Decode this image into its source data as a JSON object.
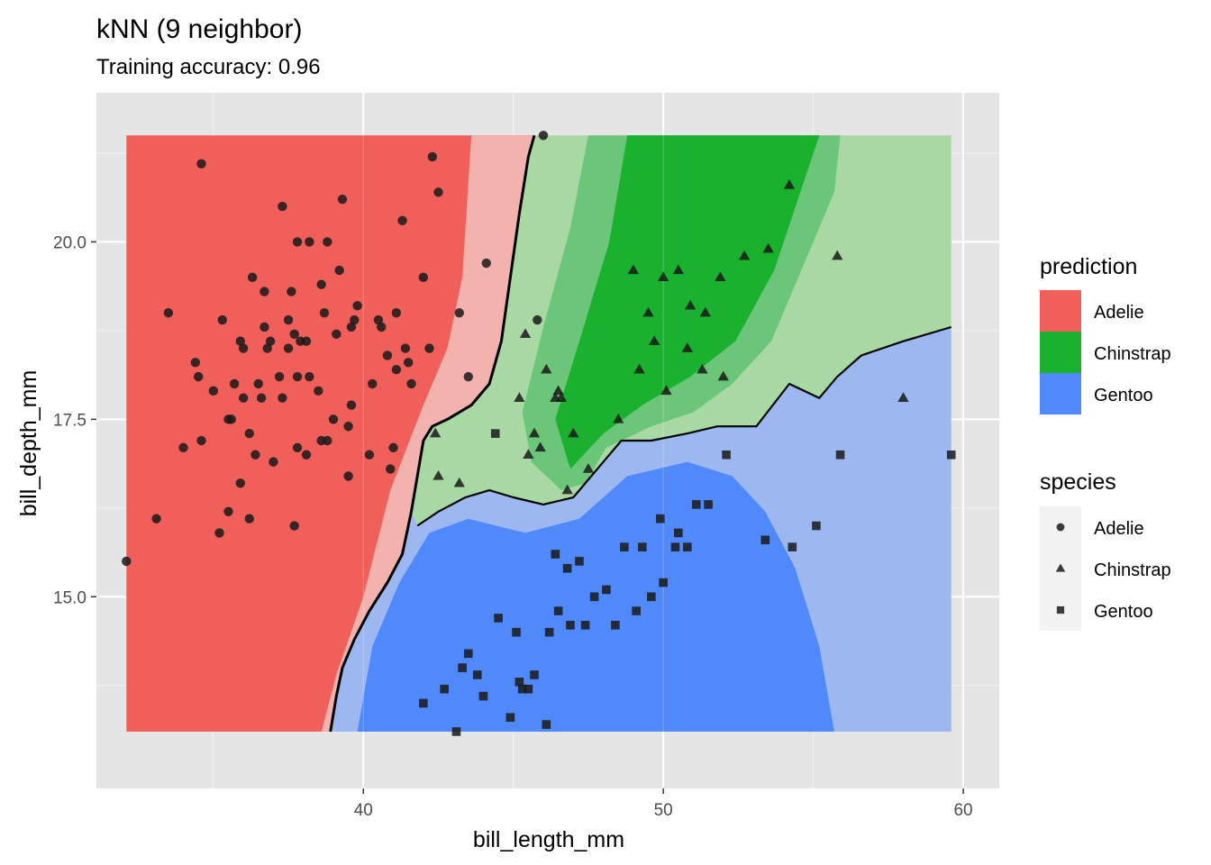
{
  "chart_data": {
    "type": "scatter",
    "title": "kNN (9 neighbor)",
    "subtitle": "Training accuracy: 0.96",
    "xlabel": "bill_length_mm",
    "ylabel": "bill_depth_mm",
    "xlim": [
      31.1,
      61.2
    ],
    "ylim": [
      12.3,
      22.1
    ],
    "x_ticks": [
      40,
      50,
      60
    ],
    "x_tick_labels": [
      "40",
      "50",
      "60"
    ],
    "y_ticks": [
      15.0,
      17.5,
      20.0
    ],
    "y_tick_labels": [
      "15.0",
      "17.5",
      "20.0"
    ],
    "grid": true,
    "background": "#e5e5e5",
    "region": {
      "x": [
        32.1,
        59.6
      ],
      "y": [
        13.1,
        21.5
      ]
    },
    "legend_position": "right",
    "legend_prediction": {
      "title": "prediction",
      "items": [
        {
          "label": "Adelie",
          "color": "#f15f5a"
        },
        {
          "label": "Chinstrap",
          "color": "#19b12e"
        },
        {
          "label": "Gentoo",
          "color": "#4f89fb"
        }
      ]
    },
    "legend_species": {
      "title": "species",
      "items": [
        {
          "label": "Adelie",
          "shape": "circle"
        },
        {
          "label": "Chinstrap",
          "shape": "triangle"
        },
        {
          "label": "Gentoo",
          "shape": "square"
        }
      ]
    },
    "regions": {
      "adelie_chinstrap_boundary": [
        [
          38.9,
          13.1
        ],
        [
          39.1,
          13.6
        ],
        [
          39.3,
          14.0
        ],
        [
          39.7,
          14.4
        ],
        [
          40.2,
          14.8
        ],
        [
          40.8,
          15.2
        ],
        [
          41.3,
          15.6
        ],
        [
          41.6,
          16.2
        ],
        [
          41.8,
          16.7
        ],
        [
          42.0,
          17.2
        ],
        [
          42.3,
          17.4
        ],
        [
          42.8,
          17.5
        ],
        [
          43.6,
          17.7
        ],
        [
          44.2,
          18.0
        ],
        [
          44.6,
          18.6
        ],
        [
          44.9,
          19.5
        ],
        [
          45.2,
          20.4
        ],
        [
          45.5,
          21.2
        ],
        [
          45.7,
          21.5
        ]
      ],
      "chinstrap_gentoo_boundary": [
        [
          41.8,
          16.0
        ],
        [
          42.5,
          16.2
        ],
        [
          43.4,
          16.4
        ],
        [
          44.2,
          16.5
        ],
        [
          45.0,
          16.4
        ],
        [
          46.0,
          16.3
        ],
        [
          47.0,
          16.4
        ],
        [
          47.8,
          16.8
        ],
        [
          48.6,
          17.2
        ],
        [
          49.6,
          17.2
        ],
        [
          50.8,
          17.3
        ],
        [
          51.8,
          17.4
        ],
        [
          53.1,
          17.4
        ],
        [
          54.2,
          18.0
        ],
        [
          55.2,
          17.8
        ],
        [
          55.8,
          18.1
        ],
        [
          56.6,
          18.4
        ],
        [
          58.0,
          18.6
        ],
        [
          59.6,
          18.8
        ]
      ],
      "adelie_color_soft": "#f3b2ae",
      "chinstrap_color_soft": "#a8d9a5",
      "gentoo_color_soft": "#9db8f0",
      "neutral_gray": "#dcdde6"
    },
    "series": [
      {
        "name": "Adelie",
        "shape": "circle",
        "points": [
          [
            32.1,
            15.5
          ],
          [
            33.1,
            16.1
          ],
          [
            33.5,
            19.0
          ],
          [
            34.0,
            17.1
          ],
          [
            34.4,
            18.3
          ],
          [
            34.5,
            18.1
          ],
          [
            34.6,
            21.1
          ],
          [
            34.6,
            17.2
          ],
          [
            35.0,
            17.9
          ],
          [
            35.2,
            15.9
          ],
          [
            35.3,
            18.9
          ],
          [
            35.5,
            16.2
          ],
          [
            35.5,
            17.5
          ],
          [
            35.6,
            17.5
          ],
          [
            35.7,
            18.0
          ],
          [
            35.9,
            16.6
          ],
          [
            35.9,
            18.6
          ],
          [
            36.0,
            18.5
          ],
          [
            36.0,
            17.8
          ],
          [
            36.2,
            16.1
          ],
          [
            36.2,
            17.3
          ],
          [
            36.3,
            19.5
          ],
          [
            36.4,
            17.0
          ],
          [
            36.5,
            18.0
          ],
          [
            36.6,
            17.8
          ],
          [
            36.7,
            18.8
          ],
          [
            36.7,
            19.3
          ],
          [
            36.8,
            18.5
          ],
          [
            36.9,
            18.6
          ],
          [
            37.0,
            16.9
          ],
          [
            37.2,
            18.1
          ],
          [
            37.3,
            17.8
          ],
          [
            37.3,
            20.5
          ],
          [
            37.5,
            18.9
          ],
          [
            37.5,
            18.5
          ],
          [
            37.6,
            19.3
          ],
          [
            37.7,
            18.7
          ],
          [
            37.7,
            16.0
          ],
          [
            37.8,
            17.1
          ],
          [
            37.8,
            18.1
          ],
          [
            37.8,
            20.0
          ],
          [
            37.9,
            18.6
          ],
          [
            38.1,
            18.6
          ],
          [
            38.1,
            17.0
          ],
          [
            38.2,
            18.1
          ],
          [
            38.2,
            20.0
          ],
          [
            38.5,
            17.9
          ],
          [
            38.6,
            19.4
          ],
          [
            38.6,
            17.2
          ],
          [
            38.7,
            19.0
          ],
          [
            38.8,
            17.2
          ],
          [
            38.8,
            20.0
          ],
          [
            39.0,
            17.5
          ],
          [
            39.1,
            18.7
          ],
          [
            39.2,
            19.6
          ],
          [
            39.3,
            20.6
          ],
          [
            39.5,
            17.4
          ],
          [
            39.5,
            16.7
          ],
          [
            39.6,
            17.7
          ],
          [
            39.6,
            18.8
          ],
          [
            39.7,
            18.9
          ],
          [
            39.8,
            19.1
          ],
          [
            40.2,
            17.0
          ],
          [
            40.3,
            18.0
          ],
          [
            40.5,
            18.9
          ],
          [
            40.6,
            18.8
          ],
          [
            40.8,
            18.4
          ],
          [
            40.9,
            16.8
          ],
          [
            41.0,
            17.1
          ],
          [
            41.1,
            18.2
          ],
          [
            41.1,
            19.0
          ],
          [
            41.3,
            20.3
          ],
          [
            41.4,
            18.5
          ],
          [
            41.5,
            18.3
          ],
          [
            41.6,
            18.0
          ],
          [
            42.0,
            19.5
          ],
          [
            42.2,
            18.5
          ],
          [
            42.3,
            21.2
          ],
          [
            42.5,
            20.7
          ],
          [
            43.2,
            19.0
          ],
          [
            43.5,
            18.1
          ],
          [
            44.1,
            19.7
          ],
          [
            45.8,
            18.9
          ],
          [
            46.0,
            21.5
          ]
        ]
      },
      {
        "name": "Chinstrap",
        "shape": "triangle",
        "points": [
          [
            42.4,
            17.3
          ],
          [
            42.5,
            16.7
          ],
          [
            43.2,
            16.6
          ],
          [
            45.2,
            17.8
          ],
          [
            45.4,
            18.7
          ],
          [
            45.5,
            17.0
          ],
          [
            45.7,
            17.3
          ],
          [
            45.9,
            17.1
          ],
          [
            46.1,
            18.2
          ],
          [
            46.4,
            17.8
          ],
          [
            46.5,
            17.9
          ],
          [
            46.6,
            17.8
          ],
          [
            46.8,
            16.5
          ],
          [
            47.0,
            17.3
          ],
          [
            47.5,
            16.8
          ],
          [
            48.5,
            17.5
          ],
          [
            49.0,
            19.6
          ],
          [
            49.2,
            18.2
          ],
          [
            49.5,
            19.0
          ],
          [
            49.7,
            18.6
          ],
          [
            50.0,
            19.5
          ],
          [
            50.1,
            17.9
          ],
          [
            50.5,
            19.6
          ],
          [
            50.8,
            18.5
          ],
          [
            50.9,
            19.1
          ],
          [
            51.3,
            18.2
          ],
          [
            51.4,
            19.0
          ],
          [
            51.9,
            19.5
          ],
          [
            52.0,
            18.1
          ],
          [
            52.7,
            19.8
          ],
          [
            53.5,
            19.9
          ],
          [
            54.2,
            20.8
          ],
          [
            55.8,
            19.8
          ],
          [
            58.0,
            17.8
          ]
        ]
      },
      {
        "name": "Gentoo",
        "shape": "square",
        "points": [
          [
            42.0,
            13.5
          ],
          [
            42.7,
            13.7
          ],
          [
            43.1,
            13.1
          ],
          [
            43.3,
            14.0
          ],
          [
            43.5,
            14.2
          ],
          [
            43.8,
            13.9
          ],
          [
            44.0,
            13.6
          ],
          [
            44.4,
            17.3
          ],
          [
            44.5,
            14.7
          ],
          [
            44.9,
            13.3
          ],
          [
            45.1,
            14.5
          ],
          [
            45.2,
            13.8
          ],
          [
            45.3,
            13.7
          ],
          [
            45.5,
            13.7
          ],
          [
            45.7,
            13.9
          ],
          [
            46.1,
            13.2
          ],
          [
            46.2,
            14.5
          ],
          [
            46.4,
            15.6
          ],
          [
            46.5,
            14.8
          ],
          [
            46.8,
            15.4
          ],
          [
            46.9,
            14.6
          ],
          [
            47.2,
            15.5
          ],
          [
            47.4,
            14.6
          ],
          [
            47.7,
            15.0
          ],
          [
            48.1,
            15.1
          ],
          [
            48.4,
            14.6
          ],
          [
            48.7,
            15.7
          ],
          [
            49.1,
            14.8
          ],
          [
            49.3,
            15.7
          ],
          [
            49.6,
            15.0
          ],
          [
            49.9,
            16.1
          ],
          [
            50.0,
            15.2
          ],
          [
            50.4,
            15.7
          ],
          [
            50.5,
            15.9
          ],
          [
            50.8,
            15.7
          ],
          [
            51.1,
            16.3
          ],
          [
            51.5,
            16.3
          ],
          [
            52.1,
            17.0
          ],
          [
            53.4,
            15.8
          ],
          [
            54.3,
            15.7
          ],
          [
            55.1,
            16.0
          ],
          [
            55.9,
            17.0
          ],
          [
            59.6,
            17.0
          ]
        ]
      }
    ]
  }
}
